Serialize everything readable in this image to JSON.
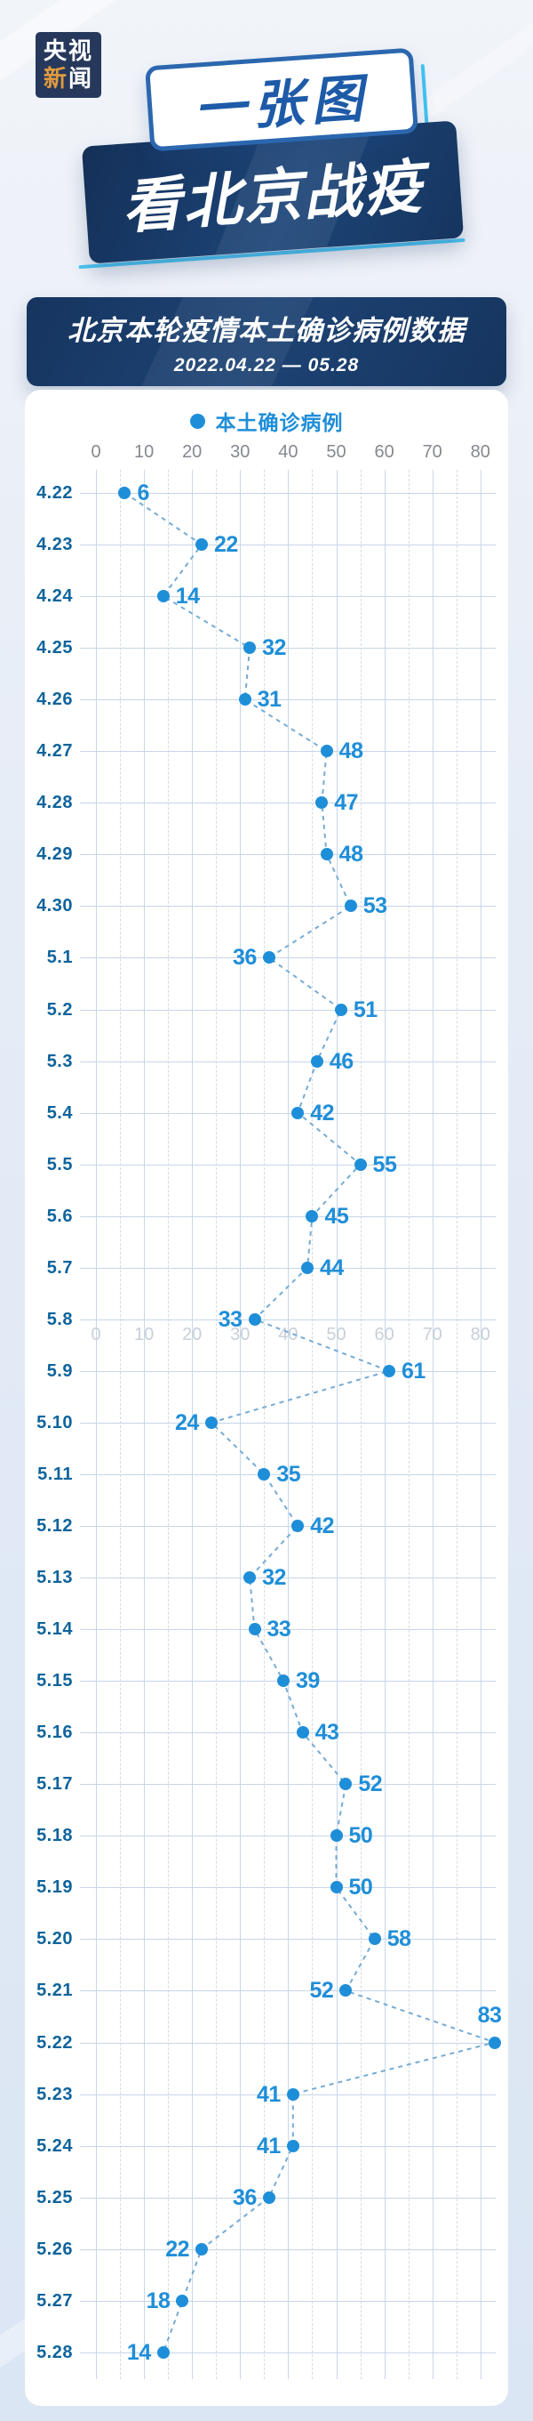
{
  "brand": {
    "logo_line1": "央视",
    "logo_line2_parts": [
      "新",
      "闻"
    ]
  },
  "banner": {
    "line1": "一张图",
    "line2": "看北京战疫"
  },
  "header": {
    "title": "北京本轮疫情本土确诊病例数据",
    "date_range": "2022.04.22 — 05.28"
  },
  "legend": {
    "label": "本土确诊病例"
  },
  "colors": {
    "accent_blue": "#1f8ed8",
    "date_label_blue": "#0f649c",
    "navy": "#16355f",
    "cyan_accent": "#4ec7f4",
    "logo_orange": "#e09a3e",
    "grid_line": "#c6d6e9",
    "tick_gray": "#85888d"
  },
  "chart_data": {
    "type": "line",
    "line_style": "dashed",
    "layout": "dates-on-y-axis, values-on-x-axis (axis ticks along top, repeated faintly below row 5.8)",
    "title": "北京本轮疫情本土确诊病例数据",
    "subtitle": "2022.04.22 — 05.28",
    "legend_entries": [
      "本土确诊病例"
    ],
    "legend_position": "top-center",
    "grid": "on",
    "value_axis": {
      "min": 0,
      "max": 80,
      "step": 10,
      "ticks": [
        0,
        10,
        20,
        30,
        40,
        50,
        60,
        70,
        80
      ],
      "position": "top",
      "faint_repeat_after_category": "5.8"
    },
    "categories": [
      "4.22",
      "4.23",
      "4.24",
      "4.25",
      "4.26",
      "4.27",
      "4.28",
      "4.29",
      "4.30",
      "5.1",
      "5.2",
      "5.3",
      "5.4",
      "5.5",
      "5.6",
      "5.7",
      "5.8",
      "5.9",
      "5.10",
      "5.11",
      "5.12",
      "5.13",
      "5.14",
      "5.15",
      "5.16",
      "5.17",
      "5.18",
      "5.19",
      "5.20",
      "5.21",
      "5.22",
      "5.23",
      "5.24",
      "5.25",
      "5.26",
      "5.27",
      "5.28"
    ],
    "series": [
      {
        "name": "本土确诊病例",
        "values": [
          6,
          22,
          14,
          32,
          31,
          48,
          47,
          48,
          53,
          36,
          51,
          46,
          42,
          55,
          45,
          44,
          33,
          61,
          24,
          35,
          42,
          32,
          33,
          39,
          43,
          52,
          50,
          50,
          58,
          52,
          83,
          41,
          41,
          36,
          22,
          18,
          14
        ],
        "label_side": [
          "right",
          "right",
          "right",
          "right",
          "right",
          "right",
          "right",
          "right",
          "right",
          "left",
          "right",
          "right",
          "right",
          "right",
          "right",
          "right",
          "left",
          "right",
          "left",
          "right",
          "right",
          "right",
          "right",
          "right",
          "right",
          "right",
          "right",
          "right",
          "right",
          "left",
          "above",
          "left",
          "left",
          "left",
          "left",
          "left",
          "left"
        ]
      }
    ]
  }
}
